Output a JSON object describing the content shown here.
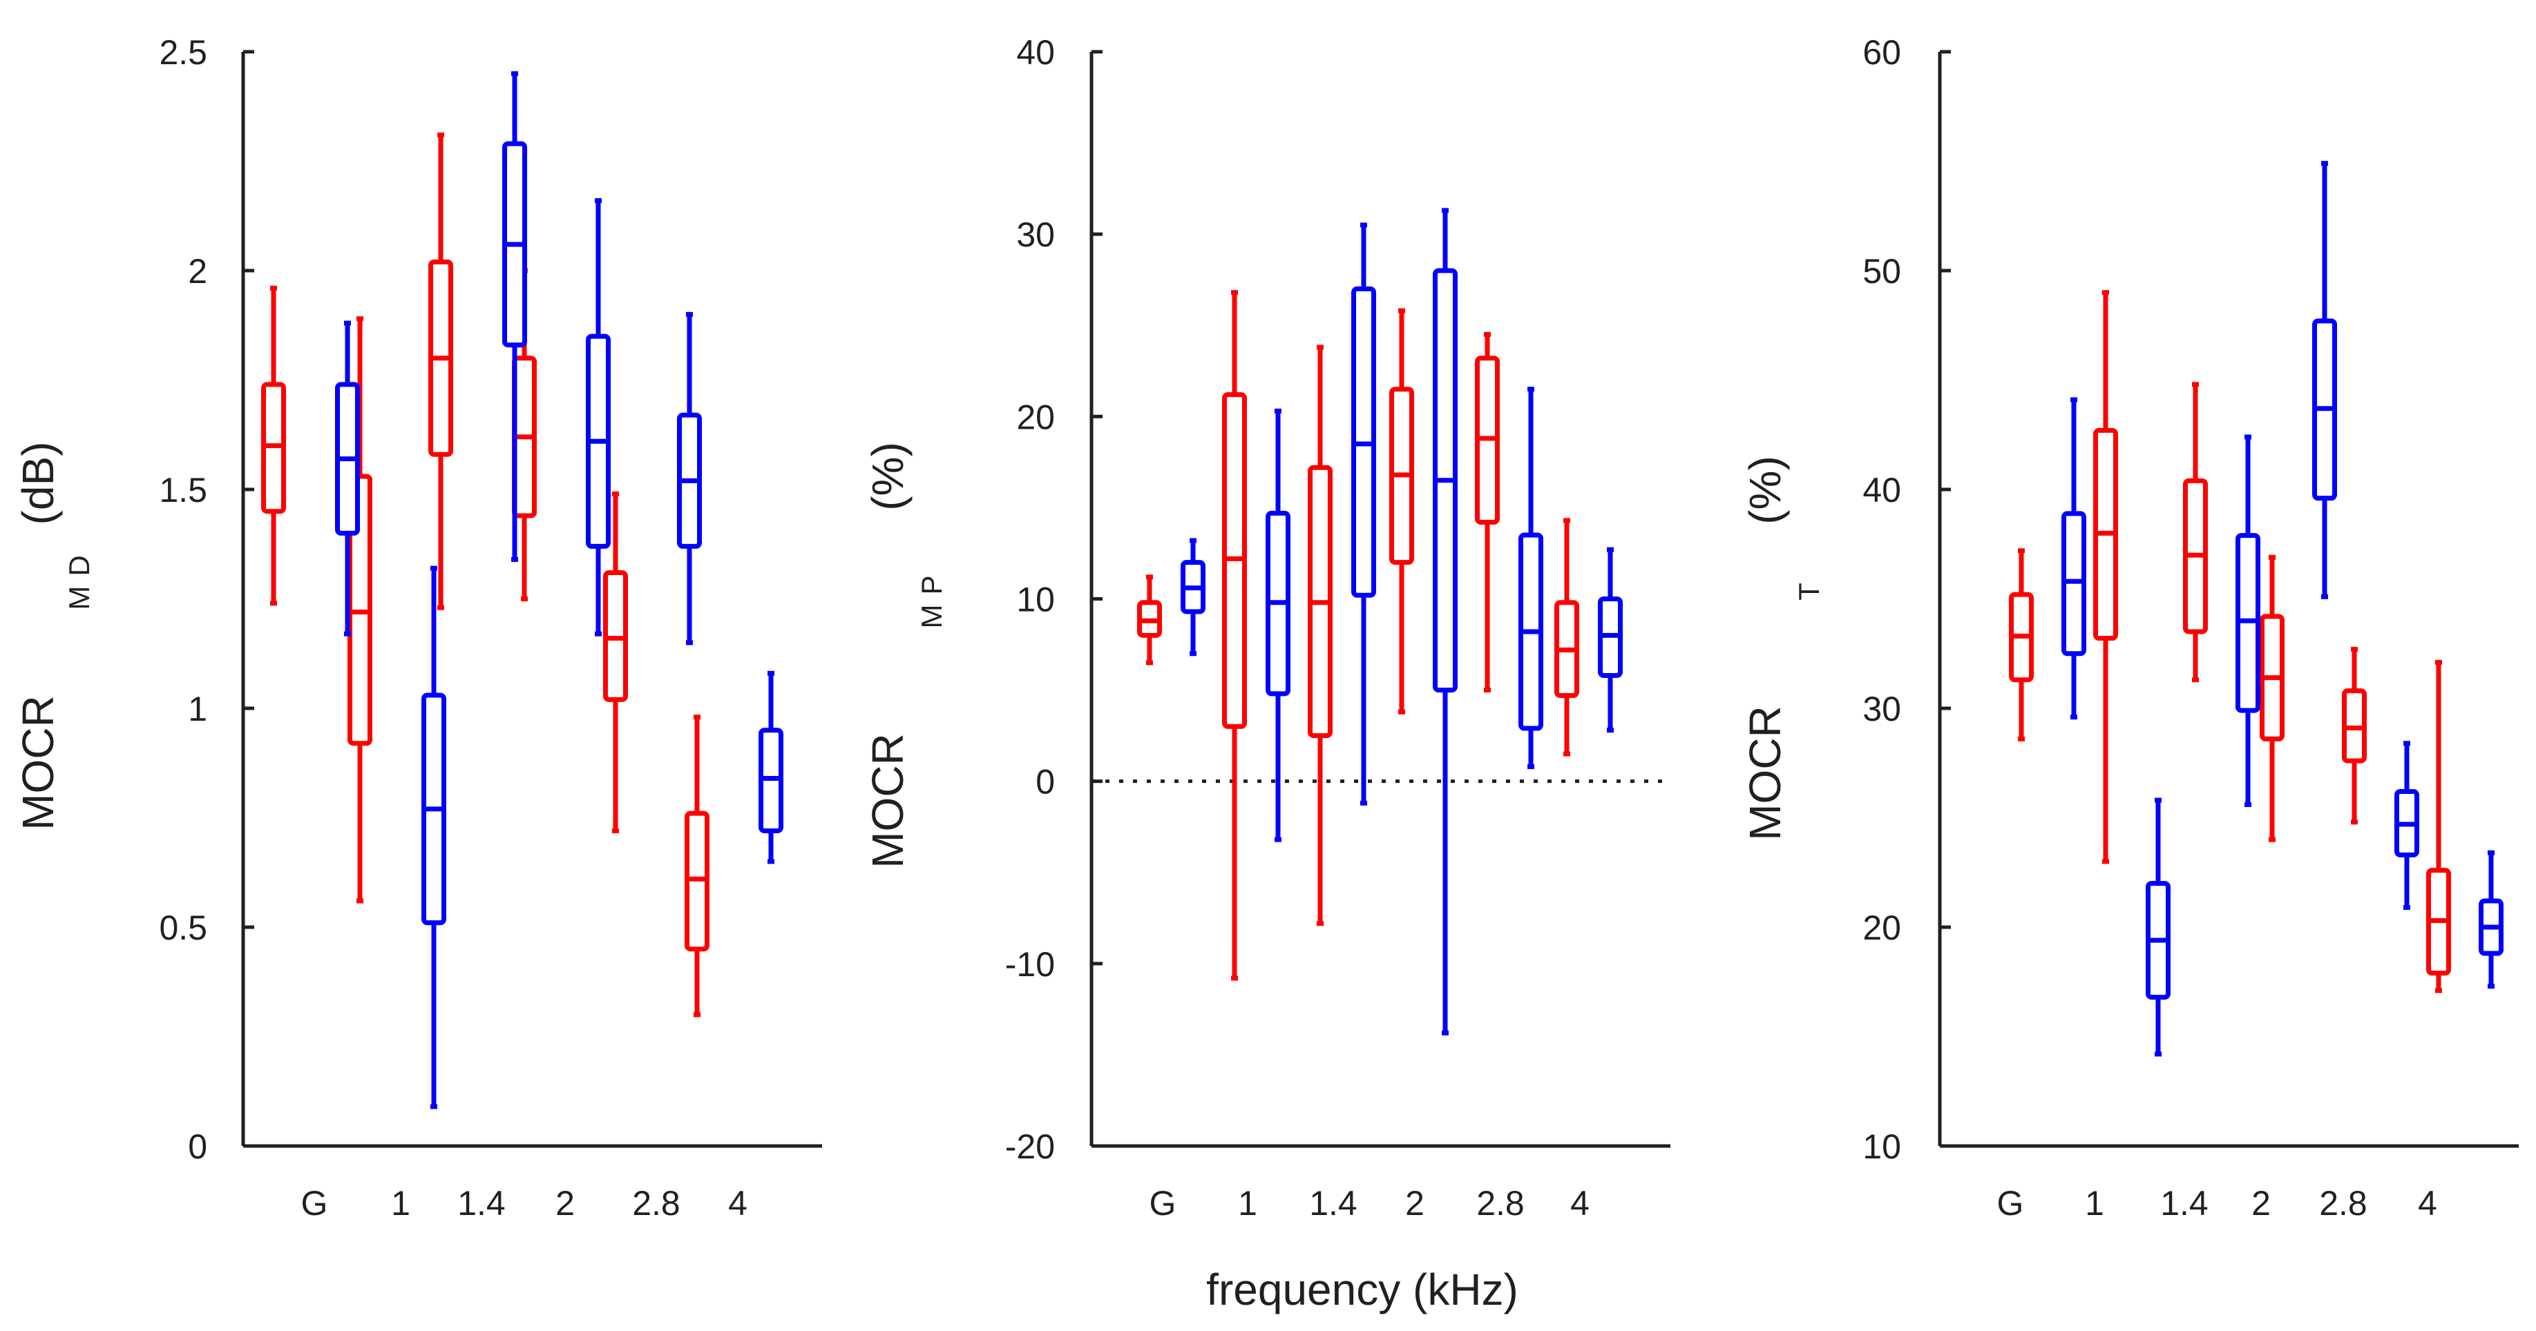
{
  "xlabel": "frequency (kHz)",
  "colors": {
    "red": "#ff0000",
    "blue": "#0000ff",
    "axis": "#231f20"
  },
  "chart_data": [
    {
      "type": "boxplot",
      "panel": "left",
      "ylabel_main": "MOCR",
      "ylabel_sub": "MD",
      "ylabel_unit": "(dB)",
      "ylim": [
        0,
        2.5
      ],
      "yticks": [
        "0",
        "0.5",
        "1",
        "1.5",
        "2",
        "2.5"
      ],
      "ytick_values": [
        0,
        0.5,
        1,
        1.5,
        2,
        2.5
      ],
      "categories": [
        "G",
        "1",
        "1.4",
        "2",
        "2.8",
        "4"
      ],
      "series": [
        {
          "name": "red",
          "color": "#ff0000",
          "boxes": [
            {
              "min": 1.24,
              "q1": 1.45,
              "median": 1.6,
              "q3": 1.74,
              "max": 1.96
            },
            {
              "min": 0.56,
              "q1": 0.92,
              "median": 1.22,
              "q3": 1.53,
              "max": 1.89
            },
            {
              "min": 1.23,
              "q1": 1.58,
              "median": 1.8,
              "q3": 2.02,
              "max": 2.31
            },
            {
              "min": 1.25,
              "q1": 1.44,
              "median": 1.62,
              "q3": 1.8,
              "max": 2.0
            },
            {
              "min": 0.72,
              "q1": 1.02,
              "median": 1.16,
              "q3": 1.31,
              "max": 1.49
            },
            {
              "min": 0.3,
              "q1": 0.45,
              "median": 0.61,
              "q3": 0.76,
              "max": 0.98
            }
          ]
        },
        {
          "name": "blue",
          "color": "#0000ff",
          "boxes": [
            {
              "min": 1.17,
              "q1": 1.4,
              "median": 1.57,
              "q3": 1.74,
              "max": 1.88
            },
            {
              "min": 0.09,
              "q1": 0.51,
              "median": 0.77,
              "q3": 1.03,
              "max": 1.32
            },
            {
              "min": 1.34,
              "q1": 1.83,
              "median": 2.06,
              "q3": 2.29,
              "max": 2.45
            },
            {
              "min": 1.17,
              "q1": 1.37,
              "median": 1.61,
              "q3": 1.85,
              "max": 2.16
            },
            {
              "min": 1.15,
              "q1": 1.37,
              "median": 1.52,
              "q3": 1.67,
              "max": 1.9
            },
            {
              "min": 0.65,
              "q1": 0.72,
              "median": 0.84,
              "q3": 0.95,
              "max": 1.08
            }
          ]
        }
      ]
    },
    {
      "type": "boxplot",
      "panel": "middle",
      "ylabel_main": "MOCR",
      "ylabel_sub": "MP",
      "ylabel_unit": "(%)",
      "ylim": [
        -20,
        40
      ],
      "yticks": [
        "-20",
        "-10",
        "0",
        "10",
        "20",
        "30",
        "40"
      ],
      "ytick_values": [
        -20,
        -10,
        0,
        10,
        20,
        30,
        40
      ],
      "reference_line": 0,
      "categories": [
        "G",
        "1",
        "1.4",
        "2",
        "2.8",
        "4"
      ],
      "series": [
        {
          "name": "red",
          "color": "#ff0000",
          "boxes": [
            {
              "min": 6.5,
              "q1": 8.0,
              "median": 8.8,
              "q3": 9.8,
              "max": 11.2
            },
            {
              "min": -10.8,
              "q1": 3.0,
              "median": 12.2,
              "q3": 21.2,
              "max": 26.8
            },
            {
              "min": -7.8,
              "q1": 2.5,
              "median": 9.8,
              "q3": 17.2,
              "max": 23.8
            },
            {
              "min": 3.8,
              "q1": 12.0,
              "median": 16.8,
              "q3": 21.5,
              "max": 25.8
            },
            {
              "min": 5.0,
              "q1": 14.2,
              "median": 18.8,
              "q3": 23.2,
              "max": 24.5
            },
            {
              "min": 1.5,
              "q1": 4.7,
              "median": 7.2,
              "q3": 9.8,
              "max": 14.3
            }
          ]
        },
        {
          "name": "blue",
          "color": "#0000ff",
          "boxes": [
            {
              "min": 7.0,
              "q1": 9.3,
              "median": 10.6,
              "q3": 12.0,
              "max": 13.2
            },
            {
              "min": -3.2,
              "q1": 4.8,
              "median": 9.8,
              "q3": 14.7,
              "max": 20.3
            },
            {
              "min": -1.2,
              "q1": 10.2,
              "median": 18.5,
              "q3": 27.0,
              "max": 30.5
            },
            {
              "min": -13.8,
              "q1": 5.0,
              "median": 16.5,
              "q3": 28.0,
              "max": 31.3
            },
            {
              "min": 0.8,
              "q1": 2.9,
              "median": 8.2,
              "q3": 13.5,
              "max": 21.5
            },
            {
              "min": 2.8,
              "q1": 5.8,
              "median": 8.0,
              "q3": 10.0,
              "max": 12.7
            }
          ]
        }
      ]
    },
    {
      "type": "boxplot",
      "panel": "right",
      "ylabel_main": "MOCR",
      "ylabel_sub": "T",
      "ylabel_unit": "(%)",
      "ylim": [
        10,
        60
      ],
      "yticks": [
        "10",
        "20",
        "30",
        "40",
        "50",
        "60"
      ],
      "ytick_values": [
        10,
        20,
        30,
        40,
        50,
        60
      ],
      "categories": [
        "G",
        "1",
        "1.4",
        "2",
        "2.8",
        "4"
      ],
      "series": [
        {
          "name": "red",
          "color": "#ff0000",
          "boxes": [
            {
              "min": 28.6,
              "q1": 31.3,
              "median": 33.3,
              "q3": 35.2,
              "max": 37.2
            },
            {
              "min": 23.0,
              "q1": 33.2,
              "median": 38.0,
              "q3": 42.7,
              "max": 49.0
            },
            {
              "min": 31.3,
              "q1": 33.5,
              "median": 37.0,
              "q3": 40.4,
              "max": 44.8
            },
            {
              "min": 24.0,
              "q1": 28.6,
              "median": 31.4,
              "q3": 34.2,
              "max": 36.9
            },
            {
              "min": 24.8,
              "q1": 27.6,
              "median": 29.1,
              "q3": 30.8,
              "max": 32.7
            },
            {
              "min": 17.1,
              "q1": 17.9,
              "median": 20.3,
              "q3": 22.6,
              "max": 32.1
            }
          ]
        },
        {
          "name": "blue",
          "color": "#0000ff",
          "boxes": [
            {
              "min": 29.6,
              "q1": 32.5,
              "median": 35.8,
              "q3": 38.9,
              "max": 44.1
            },
            {
              "min": 14.2,
              "q1": 16.8,
              "median": 19.4,
              "q3": 22.0,
              "max": 25.8
            },
            {
              "min": 25.6,
              "q1": 29.9,
              "median": 34.0,
              "q3": 37.9,
              "max": 42.4
            },
            {
              "min": 35.1,
              "q1": 39.6,
              "median": 43.7,
              "q3": 47.7,
              "max": 54.9
            },
            {
              "min": 20.9,
              "q1": 23.3,
              "median": 24.7,
              "q3": 26.2,
              "max": 28.4
            },
            {
              "min": 17.3,
              "q1": 18.8,
              "median": 20.0,
              "q3": 21.2,
              "max": 23.4
            }
          ]
        }
      ]
    }
  ]
}
